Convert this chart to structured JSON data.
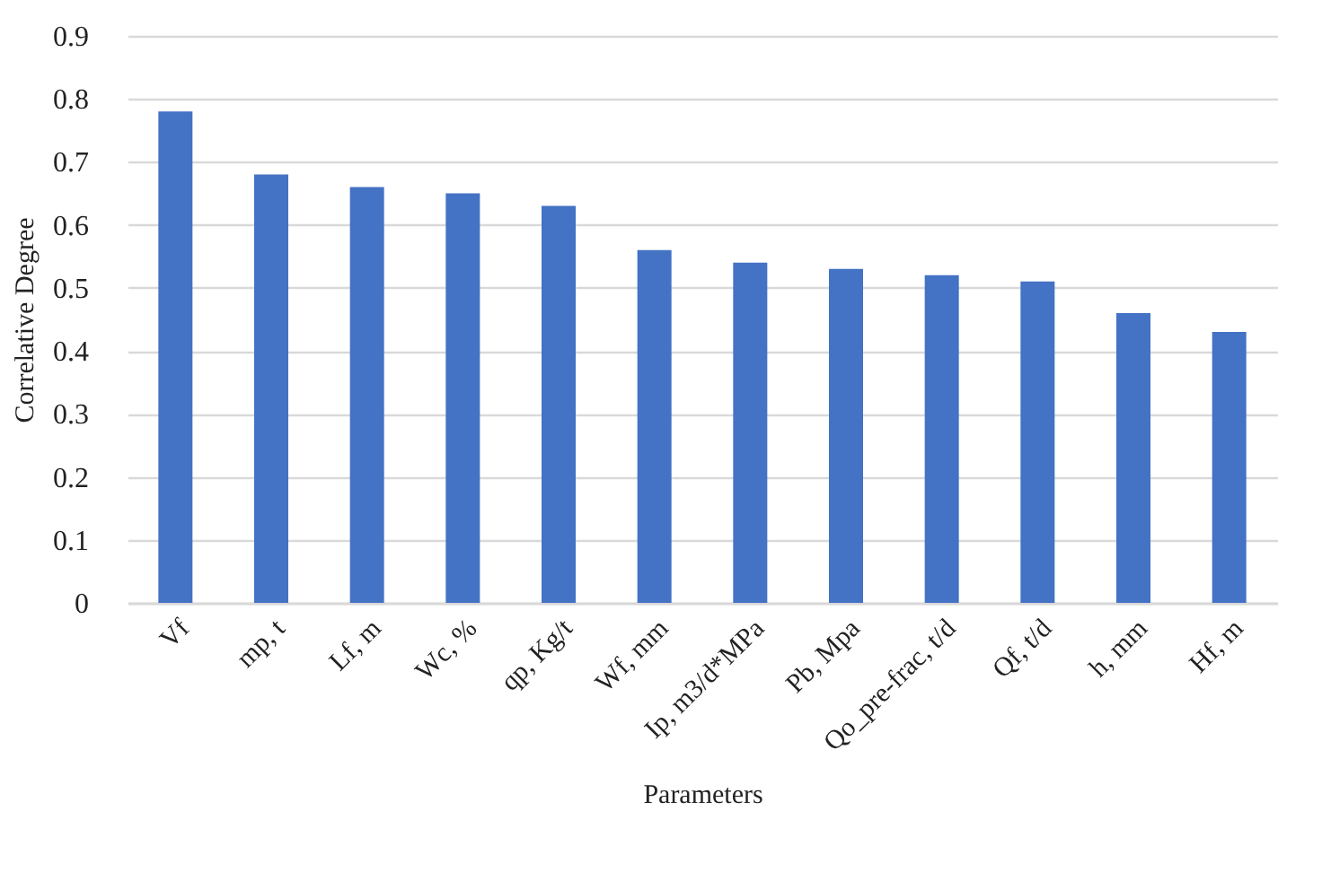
{
  "chart_data": {
    "type": "bar",
    "xlabel": "Parameters",
    "ylabel": "Correlative Degree",
    "categories": [
      "Vf",
      "mp, t",
      "Lf, m",
      "Wc, %",
      "qp, Kg/t",
      "Wf, mm",
      "Ip, m3/d*MPa",
      "Pb, Mpa",
      "Qo_pre-frac, t/d",
      "Qf, t/d",
      "h, mm",
      "Hf, m"
    ],
    "values": [
      0.78,
      0.68,
      0.66,
      0.65,
      0.63,
      0.56,
      0.54,
      0.53,
      0.52,
      0.51,
      0.46,
      0.43
    ],
    "color": "#4472c4",
    "ylim": [
      0,
      0.9
    ],
    "yticks": [
      0,
      0.1,
      0.2,
      0.3,
      0.4,
      0.5,
      0.6,
      0.7,
      0.8,
      0.9
    ],
    "grid": "y"
  }
}
